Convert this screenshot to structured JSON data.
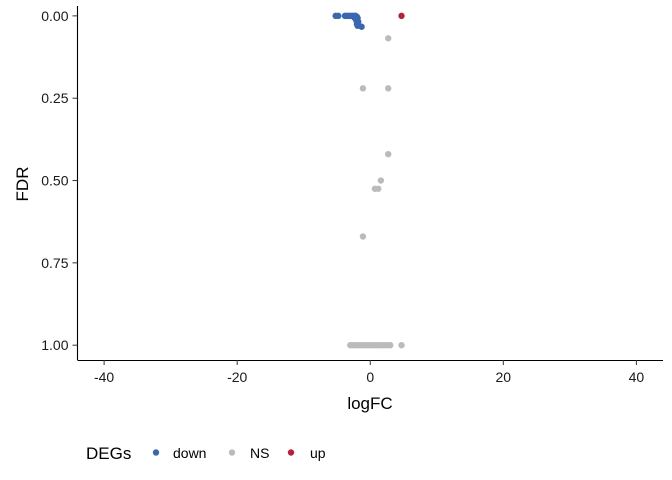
{
  "chart_data": {
    "type": "scatter",
    "xlabel": "logFC",
    "ylabel": "FDR",
    "xlim": [
      -44,
      44
    ],
    "ylim": [
      -0.03,
      1.045
    ],
    "y_reversed": true,
    "x_ticks": [
      -40,
      -20,
      0,
      20,
      40
    ],
    "x_tick_labels": [
      "-40",
      "-20",
      "0",
      "20",
      "40"
    ],
    "y_ticks": [
      0,
      0.25,
      0.5,
      0.75,
      1
    ],
    "y_tick_labels": [
      "0.00",
      "0.25",
      "0.50",
      "0.75",
      "1.00"
    ],
    "grid": false,
    "legend": {
      "title": "DEGs",
      "placement": "bottom-left",
      "entries": [
        {
          "label": "down",
          "color": "#3A68AE"
        },
        {
          "label": "NS",
          "color": "#BBBBBB"
        },
        {
          "label": "up",
          "color": "#B5223E"
        }
      ]
    },
    "series": [
      {
        "name": "down",
        "color": "#3A68AE",
        "points": [
          {
            "x": -5.2,
            "y": 0.0
          },
          {
            "x": -4.8,
            "y": 0.0
          },
          {
            "x": -3.6,
            "y": 0.0
          },
          {
            "x": -3.3,
            "y": 0.0
          },
          {
            "x": -3.0,
            "y": 0.0
          },
          {
            "x": -2.7,
            "y": 0.0
          },
          {
            "x": -2.4,
            "y": 0.0
          },
          {
            "x": -2.2,
            "y": 0.0
          },
          {
            "x": -2.0,
            "y": 0.003
          },
          {
            "x": -1.9,
            "y": 0.007
          },
          {
            "x": -2.1,
            "y": 0.014
          },
          {
            "x": -1.8,
            "y": 0.018
          },
          {
            "x": -2.0,
            "y": 0.025
          },
          {
            "x": -1.9,
            "y": 0.03
          },
          {
            "x": -1.3,
            "y": 0.033
          },
          {
            "x": -2.4,
            "y": 0.005
          },
          {
            "x": -3.8,
            "y": 0.0
          }
        ]
      },
      {
        "name": "NS",
        "color": "#BBBBBB",
        "points": [
          {
            "x": 2.7,
            "y": 0.068
          },
          {
            "x": -1.1,
            "y": 0.22
          },
          {
            "x": 2.7,
            "y": 0.22
          },
          {
            "x": 2.7,
            "y": 0.42
          },
          {
            "x": 1.6,
            "y": 0.5
          },
          {
            "x": 0.7,
            "y": 0.525
          },
          {
            "x": 1.2,
            "y": 0.525
          },
          {
            "x": -1.1,
            "y": 0.67
          },
          {
            "x": -3.0,
            "y": 1.0
          },
          {
            "x": -2.6,
            "y": 1.0
          },
          {
            "x": -2.2,
            "y": 1.0
          },
          {
            "x": -1.8,
            "y": 1.0
          },
          {
            "x": -1.4,
            "y": 1.0
          },
          {
            "x": -1.0,
            "y": 1.0
          },
          {
            "x": -0.6,
            "y": 1.0
          },
          {
            "x": -0.2,
            "y": 1.0
          },
          {
            "x": 0.2,
            "y": 1.0
          },
          {
            "x": 0.6,
            "y": 1.0
          },
          {
            "x": 1.0,
            "y": 1.0
          },
          {
            "x": 1.4,
            "y": 1.0
          },
          {
            "x": 1.8,
            "y": 1.0
          },
          {
            "x": 2.2,
            "y": 1.0
          },
          {
            "x": 2.6,
            "y": 1.0
          },
          {
            "x": 3.0,
            "y": 1.0
          },
          {
            "x": 4.7,
            "y": 1.0
          }
        ]
      },
      {
        "name": "up",
        "color": "#B5223E",
        "points": [
          {
            "x": 4.7,
            "y": 0.0
          }
        ]
      }
    ]
  }
}
